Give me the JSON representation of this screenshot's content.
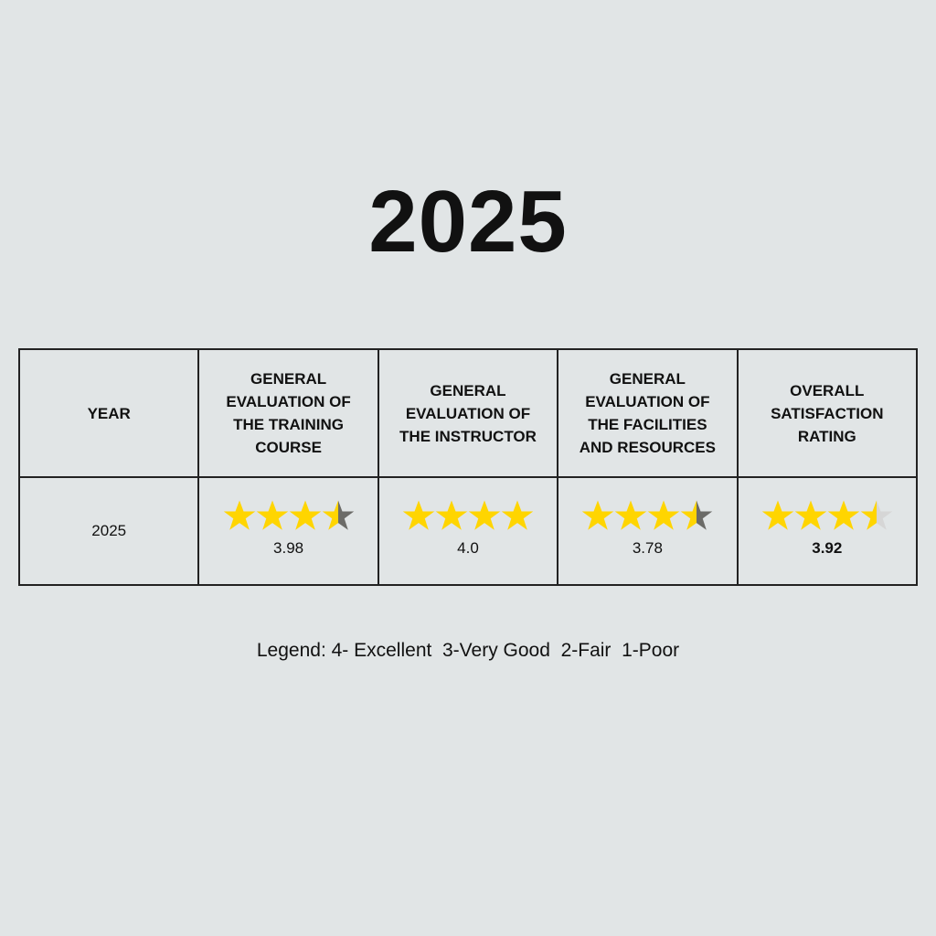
{
  "title": "2025",
  "table": {
    "headers": [
      "YEAR",
      "GENERAL EVALUATION OF THE TRAINING COURSE",
      "GENERAL EVALUATION OF THE INSTRUCTOR",
      "GENERAL EVALUATION OF THE FACILITIES AND RESOURCES",
      "OVERALL SATISFACTION RATING"
    ],
    "rows": [
      {
        "year": "2025",
        "ratings": [
          {
            "value": "3.98",
            "stars_filled": 3.5,
            "stars_max": 4,
            "empty_color": "#6b6b68",
            "bold": false
          },
          {
            "value": "4.0",
            "stars_filled": 4,
            "stars_max": 4,
            "empty_color": "#6b6b68",
            "bold": false
          },
          {
            "value": "3.78",
            "stars_filled": 3.5,
            "stars_max": 4,
            "empty_color": "#6b6b68",
            "bold": false
          },
          {
            "value": "3.92",
            "stars_filled": 3.5,
            "stars_max": 4,
            "empty_color": "#d6d6d6",
            "bold": true
          }
        ]
      }
    ]
  },
  "star_color": "#ffd500",
  "legend": "Legend: 4- Excellent  3-Very Good  2-Fair  1-Poor"
}
